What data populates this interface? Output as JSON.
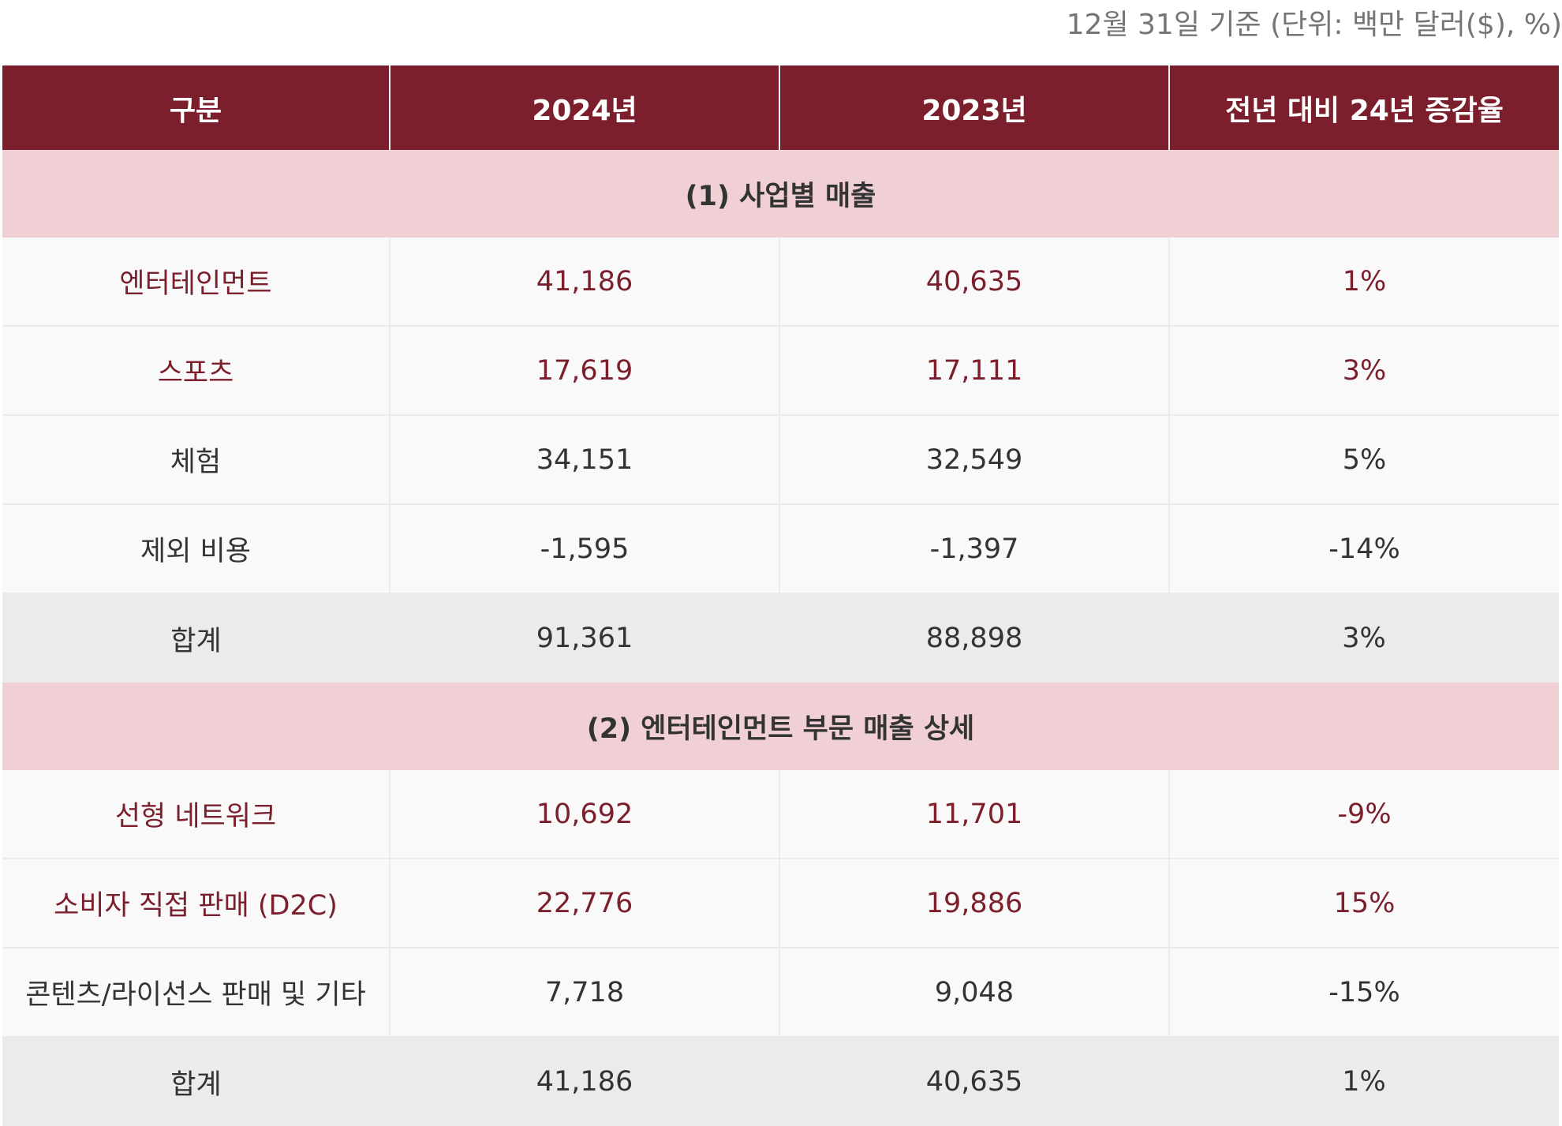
{
  "note": "12월 31일 기준 (단위: 백만 달러($), %)",
  "header": [
    "구분",
    "2024년",
    "2023년",
    "전년 대비 24년 증감율"
  ],
  "section1": {
    "title": "(1) 사업별 매출",
    "rows": [
      {
        "label": "엔터테인먼트",
        "y2024": "41,186",
        "y2023": "40,635",
        "change": "1%"
      },
      {
        "label": "스포츠",
        "y2024": "17,619",
        "y2023": "17,111",
        "change": "3%"
      },
      {
        "label": "체험",
        "y2024": "34,151",
        "y2023": "32,549",
        "change": "5%"
      },
      {
        "label": "제외 비용",
        "y2024": "-1,595",
        "y2023": "-1,397",
        "change": "-14%"
      }
    ],
    "total": {
      "label": "합계",
      "y2024": "91,361",
      "y2023": "88,898",
      "change": "3%"
    }
  },
  "section2": {
    "title": "(2) 엔터테인먼트 부문 매출 상세",
    "rows": [
      {
        "label": "선형 네트워크",
        "y2024": "10,692",
        "y2023": "11,701",
        "change": "-9%"
      },
      {
        "label": "소비자 직접 판매 (D2C)",
        "y2024": "22,776",
        "y2023": "19,886",
        "change": "15%"
      },
      {
        "label": "콘텐츠/라이선스 판매 및 기타",
        "y2024": "7,718",
        "y2023": "9,048",
        "change": "-15%"
      }
    ],
    "total": {
      "label": "합계",
      "y2024": "41,186",
      "y2023": "40,635",
      "change": "1%"
    }
  },
  "colors": {
    "header_bg": "#7a1f2b",
    "accent_text": "#7a1f2b",
    "section_bg": "#f0d0d5",
    "total_bg": "#ebebeb"
  }
}
